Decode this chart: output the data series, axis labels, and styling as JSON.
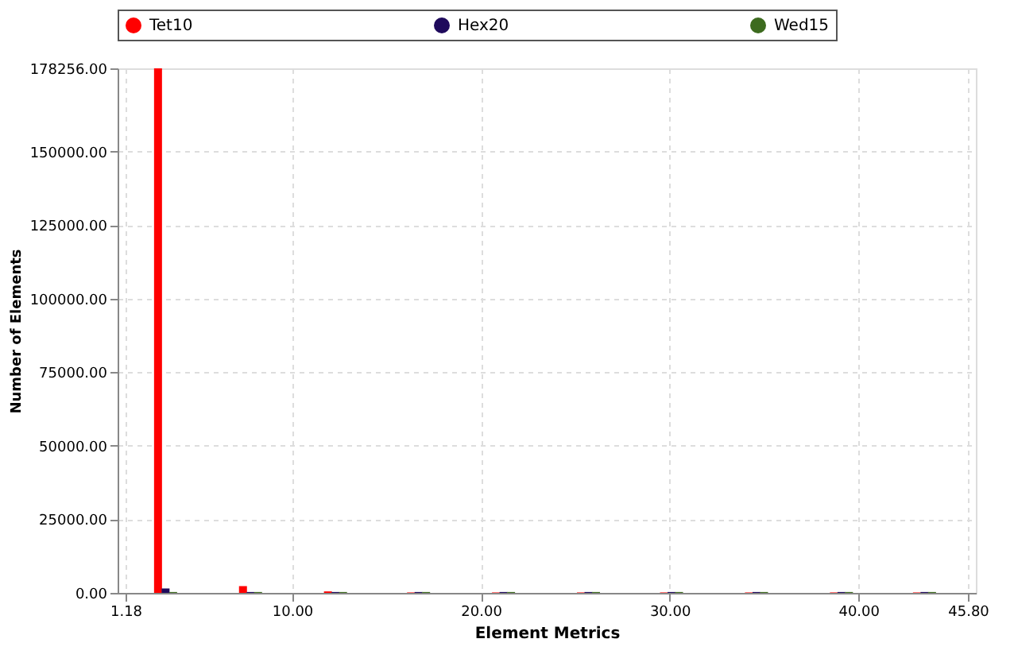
{
  "chart_data": {
    "type": "bar",
    "xlabel": "Element Metrics",
    "ylabel": "Number of Elements",
    "xlim": [
      1.18,
      45.8
    ],
    "xticks": [
      1.18,
      {
        "value": 10,
        "label": "10.00"
      },
      {
        "value": 20,
        "label": "20.00"
      },
      {
        "value": 30,
        "label": "30.00"
      },
      {
        "value": 40,
        "label": "40.00"
      },
      {
        "value": 45.8,
        "label": "45.80"
      }
    ],
    "ylim": [
      0,
      178256
    ],
    "yticks": [
      {
        "value": 0,
        "label": "0.00"
      },
      {
        "value": 25000,
        "label": "25000.00"
      },
      {
        "value": 50000,
        "label": "50000.00"
      },
      {
        "value": 75000,
        "label": "75000.00"
      },
      {
        "value": 100000,
        "label": "100000.00"
      },
      {
        "value": 125000,
        "label": "125000.00"
      },
      {
        "value": 150000,
        "label": "150000.00"
      },
      {
        "value": 178256,
        "label": "178256.00"
      }
    ],
    "grid": true,
    "legend": "top",
    "marker": "circle",
    "series": [
      {
        "name": "Tet10",
        "color": "#ff0000",
        "x": [
          2.9,
          7.4,
          11.9,
          16.3,
          20.8,
          25.3,
          29.7,
          34.2,
          38.7,
          43.1
        ],
        "values": [
          178256,
          2300,
          500,
          150,
          150,
          150,
          150,
          150,
          150,
          150
        ]
      },
      {
        "name": "Hex20",
        "color": "#1f0a5c",
        "x": [
          3.3,
          7.8,
          12.3,
          16.7,
          21.2,
          25.7,
          30.1,
          34.6,
          39.1,
          43.5
        ],
        "values": [
          1500,
          300,
          300,
          300,
          300,
          300,
          300,
          300,
          300,
          300
        ]
      },
      {
        "name": "Wed15",
        "color": "#3d6b1f",
        "x": [
          3.7,
          8.2,
          12.7,
          17.1,
          21.6,
          26.1,
          30.5,
          35.0,
          39.5,
          43.9
        ],
        "values": [
          300,
          300,
          300,
          300,
          300,
          300,
          300,
          300,
          300,
          300
        ]
      }
    ]
  }
}
